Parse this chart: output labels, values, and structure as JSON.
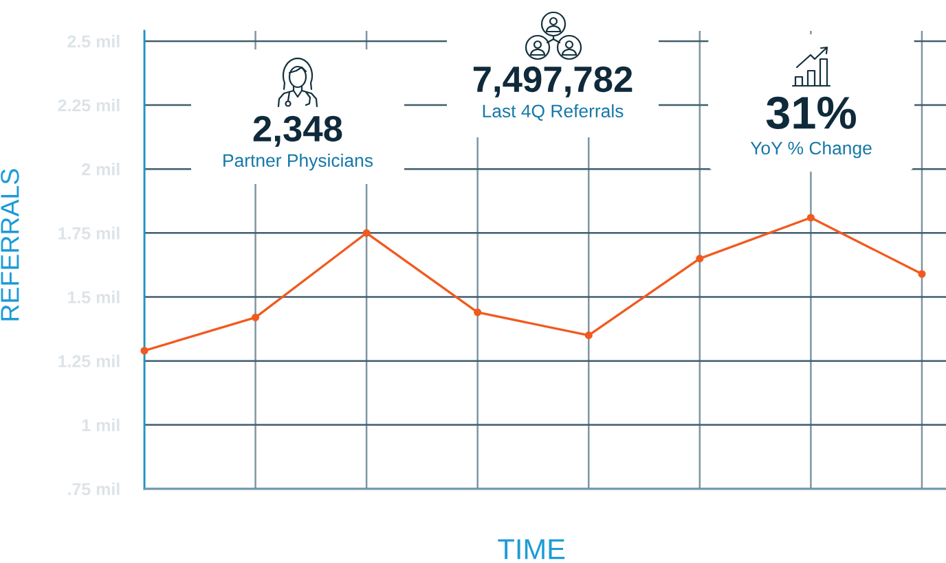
{
  "chart_data": [
    {
      "type": "line",
      "xlabel": "TIME",
      "ylabel": "REFERRALS",
      "categories": [
        null,
        null,
        null,
        null,
        null,
        null,
        null,
        null
      ],
      "tick_labels": "y",
      "grid": true,
      "marker": "circle",
      "line_style": "solid",
      "ylim": [
        0.75,
        2.54
      ],
      "yticks": [
        {
          "value": 0.75,
          "label": ".75 mil"
        },
        {
          "value": 1,
          "label": "1 mil"
        },
        {
          "value": 1.25,
          "label": "1.25 mil"
        },
        {
          "value": 1.5,
          "label": "1.5 mil"
        },
        {
          "value": 1.75,
          "label": "1.75 mil"
        },
        {
          "value": 2,
          "label": "2 mil"
        },
        {
          "value": 2.25,
          "label": "2.25 mil"
        },
        {
          "value": 2.5,
          "label": "2.5 mil"
        }
      ],
      "series": [
        {
          "color": "#f15a1e",
          "values": [
            1.29,
            1.42,
            1.75,
            1.44,
            1.35,
            1.65,
            1.81,
            1.59
          ]
        }
      ]
    },
    {
      "type": "other",
      "title": "2,348",
      "subtitle": "Partner Physicians"
    },
    {
      "type": "other",
      "title": "7,497,782",
      "subtitle": "Last 4Q Referrals"
    },
    {
      "type": "other",
      "title": "31%",
      "subtitle": "YoY % Change"
    }
  ]
}
